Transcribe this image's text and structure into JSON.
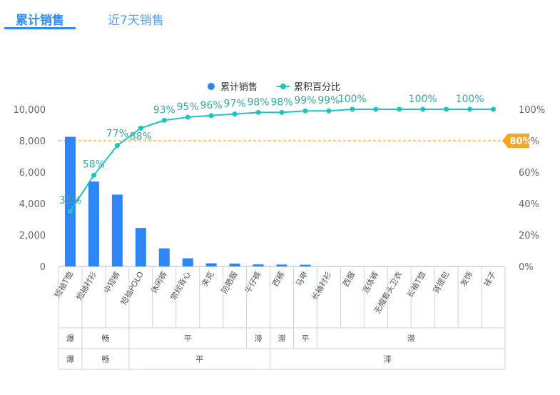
{
  "tabs": [
    {
      "label": "累计销售",
      "active": true
    },
    {
      "label": "近7天销售",
      "active": false
    }
  ],
  "colors": {
    "bar": "#2e86f6",
    "line": "#1fc3bf",
    "label": "#35a8a0",
    "threshold": "#f6a623",
    "tab_active": "#2e8af5"
  },
  "chart_data": {
    "type": "bar",
    "title": "",
    "xlabel": "",
    "ylabel": "",
    "categories": [
      "短袖T恤",
      "短袖衬衫",
      "中短裤",
      "短袖POLO",
      "休闲裤",
      "常规背心",
      "夹克",
      "防晒服",
      "牛仔裤",
      "西裤",
      "马甲",
      "长袖衬衫",
      "西服",
      "连体裤",
      "无帽套头卫衣",
      "长袖T恤",
      "背提包",
      "发饰",
      "袜子"
    ],
    "series": [
      {
        "name": "累计销售",
        "type": "bar",
        "values": [
          8250,
          5400,
          4570,
          2450,
          1150,
          520,
          200,
          180,
          130,
          120,
          110,
          0,
          0,
          0,
          0,
          0,
          0,
          0,
          0
        ]
      },
      {
        "name": "累积百分比",
        "type": "line",
        "values": [
          35,
          58,
          77,
          88,
          93,
          95,
          96,
          97,
          98,
          98,
          99,
          99,
          100,
          100,
          100,
          100,
          100,
          100,
          100
        ]
      }
    ],
    "point_labels": [
      "35%",
      "58%",
      "77%",
      "88%",
      "93%",
      "95%",
      "96%",
      "97%",
      "98%",
      "98%",
      "99%",
      "99%",
      "100%",
      "",
      "",
      "100%",
      "",
      "100%",
      ""
    ],
    "ylim": [
      0,
      10000
    ],
    "y_ticks": [
      "0",
      "2,000",
      "4,000",
      "6,000",
      "8,000",
      "10,000"
    ],
    "y2lim": [
      0,
      100
    ],
    "y2_ticks": [
      "0%",
      "20%",
      "40%",
      "60%",
      "80%",
      "100%"
    ],
    "threshold": {
      "value": 80,
      "label": "80%"
    },
    "legend_position": "top-center",
    "grid": false,
    "groups_row1": [
      {
        "label": "爆",
        "span": 1
      },
      {
        "label": "畅",
        "span": 2
      },
      {
        "label": "平",
        "span": 5
      },
      {
        "label": "滞",
        "span": 1
      },
      {
        "label": "滞",
        "span": 1
      },
      {
        "label": "平",
        "span": 1
      },
      {
        "label": "滞",
        "span": 8
      }
    ],
    "groups_row2": [
      {
        "label": "爆",
        "span": 1
      },
      {
        "label": "畅",
        "span": 2
      },
      {
        "label": "平",
        "span": 6
      },
      {
        "label": "滞",
        "span": 10
      }
    ]
  }
}
